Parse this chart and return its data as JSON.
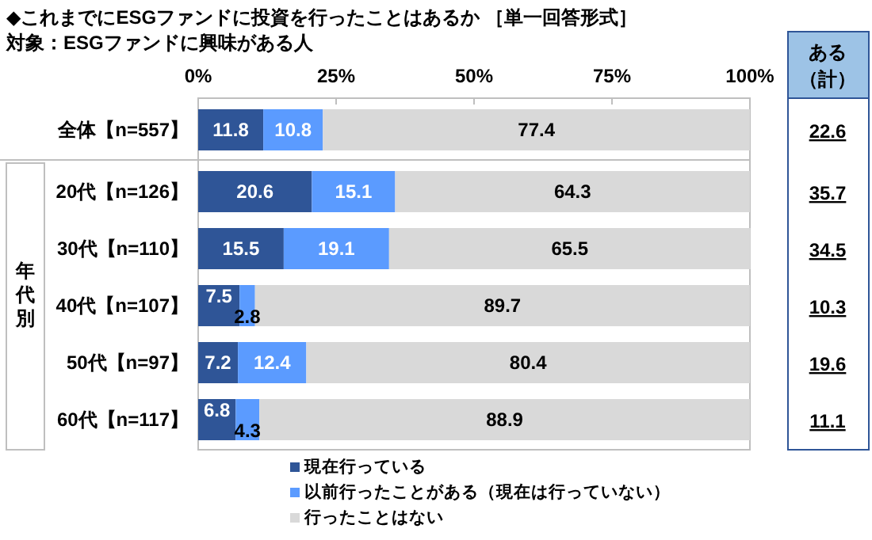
{
  "chart_data": {
    "type": "bar",
    "orientation": "horizontal",
    "stacked": true,
    "title": "◆これまでにESGファンドに投資を行ったことはあるか ［単一回答形式］",
    "subtitle": "対象：ESGファンドに興味がある人",
    "categories": [
      "全体【n=557】",
      "20代【n=126】",
      "30代【n=110】",
      "40代【n=107】",
      "50代【n=97】",
      "60代【n=117】"
    ],
    "series": [
      {
        "name": "現在行っている",
        "color": "#2f5597",
        "values": [
          11.8,
          20.6,
          15.5,
          7.5,
          7.2,
          6.8
        ]
      },
      {
        "name": "以前行ったことがある（現在は行っていない）",
        "color": "#5b9bff",
        "values": [
          10.8,
          15.1,
          19.1,
          2.8,
          12.4,
          4.3
        ]
      },
      {
        "name": "行ったことはない",
        "color": "#d9d9d9",
        "values": [
          77.4,
          64.3,
          65.5,
          89.7,
          80.4,
          88.9
        ]
      }
    ],
    "xlim": [
      0,
      100
    ],
    "xticks": [
      {
        "value": 0,
        "label": "0%"
      },
      {
        "value": 25,
        "label": "25%"
      },
      {
        "value": 50,
        "label": "50%"
      },
      {
        "value": 75,
        "label": "75%"
      },
      {
        "value": 100,
        "label": "100%"
      }
    ],
    "data_labels": true,
    "legend": "bottom",
    "annotations": [
      "ある（計）",
      "年代別",
      "22.6",
      "35.7",
      "34.5",
      "10.3",
      "19.6",
      "11.1"
    ]
  }
}
